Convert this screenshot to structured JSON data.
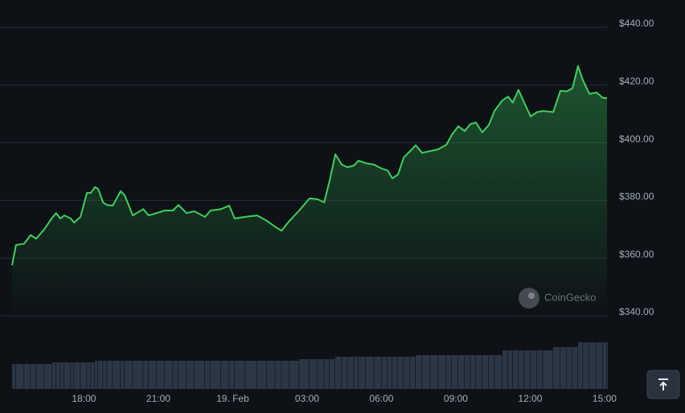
{
  "chart_data": {
    "type": "area",
    "watermark": "CoinGecko",
    "series": [
      {
        "color": "#3fcf5c",
        "x": [
          15.1,
          15.26,
          15.59,
          15.85,
          16.07,
          16.4,
          16.72,
          16.88,
          17.05,
          17.21,
          17.47,
          17.6,
          17.86,
          18.12,
          18.28,
          18.44,
          18.57,
          18.77,
          18.93,
          19.16,
          19.48,
          19.64,
          19.97,
          20.39,
          20.61,
          20.94,
          21.26,
          21.59,
          21.81,
          22.14,
          22.46,
          22.88,
          23.11,
          23.53,
          23.86,
          24.08,
          24.51,
          24.99,
          25.38,
          25.71,
          25.97,
          26.29,
          26.68,
          27.1,
          27.43,
          27.69,
          27.91,
          28.14,
          28.4,
          28.63,
          28.89,
          29.08,
          29.37,
          29.7,
          30.02,
          30.25,
          30.44,
          30.67,
          30.9,
          31.16,
          31.38,
          31.64,
          31.97,
          32.29,
          32.62,
          32.84,
          33.1,
          33.36,
          33.59,
          33.81,
          34.07,
          34.33,
          34.56,
          34.88,
          35.11,
          35.3,
          35.53,
          35.76,
          36.02,
          36.28,
          36.51,
          36.93,
          37.22,
          37.48,
          37.71,
          37.93,
          38.13,
          38.39,
          38.68,
          38.94,
          39.1
        ],
        "values": [
          357.5,
          364.5,
          365,
          368,
          366.7,
          370,
          374,
          375.6,
          373.7,
          374.8,
          373.7,
          372.3,
          374.3,
          382.6,
          382.6,
          384.6,
          384,
          379.3,
          378.4,
          378.2,
          383.2,
          381.8,
          374.8,
          377,
          374.8,
          375.6,
          376.5,
          376.5,
          378.4,
          375.6,
          376.2,
          374.3,
          376.5,
          377,
          378.2,
          373.7,
          374.3,
          374.8,
          372.9,
          370.9,
          369.5,
          372.9,
          376.5,
          380.7,
          380.4,
          379.3,
          386.8,
          396,
          392.4,
          391.5,
          392.1,
          393.8,
          392.9,
          392.4,
          391,
          390.4,
          387.6,
          389,
          394.9,
          397.1,
          399.1,
          396.5,
          397.1,
          397.7,
          399.3,
          402.7,
          405.7,
          404,
          406.5,
          407,
          403.6,
          406.1,
          411,
          414.7,
          416,
          413.9,
          418.3,
          413.9,
          409.1,
          410.6,
          411,
          410.6,
          418,
          417.8,
          418.9,
          426.6,
          421.6,
          416.9,
          417.4,
          415.5,
          415.5
        ],
        "volume": [
          31,
          31,
          31,
          31,
          31,
          31,
          33,
          33,
          33,
          33,
          33,
          33,
          33,
          33,
          33,
          35,
          35,
          35,
          35,
          35,
          35,
          35,
          35,
          35,
          35,
          35,
          35,
          35,
          35,
          35,
          35,
          35,
          35,
          35,
          35,
          35,
          35,
          35,
          35,
          35,
          35,
          35,
          37,
          37,
          37,
          37,
          37,
          40,
          40,
          40,
          40,
          40,
          40,
          40,
          40,
          40,
          40,
          40,
          40,
          40,
          42,
          42,
          42,
          42,
          42,
          42,
          42,
          42,
          42,
          42,
          42,
          42,
          42,
          48,
          48,
          48,
          48,
          48,
          48,
          48,
          48,
          52,
          52,
          52,
          52,
          58,
          58,
          58,
          58,
          58,
          58
        ]
      }
    ],
    "xlim": [
      15.1,
      39.1
    ],
    "xticks": [
      {
        "value": 18,
        "label": "18:00"
      },
      {
        "value": 21,
        "label": "21:00"
      },
      {
        "value": 24,
        "label": "19. Feb"
      },
      {
        "value": 27,
        "label": "03:00"
      },
      {
        "value": 30,
        "label": "06:00"
      },
      {
        "value": 33,
        "label": "09:00"
      },
      {
        "value": 36,
        "label": "12:00"
      },
      {
        "value": 39,
        "label": "15:00"
      }
    ],
    "ylim": [
      340,
      440
    ],
    "yticks": [
      {
        "value": 340,
        "label": "$340.00"
      },
      {
        "value": 360,
        "label": "$360.00"
      },
      {
        "value": 380,
        "label": "$380.00"
      },
      {
        "value": 400,
        "label": "$400.00"
      },
      {
        "value": 420,
        "label": "$420.00"
      },
      {
        "value": 440,
        "label": "$440.00"
      }
    ],
    "grid": true
  }
}
